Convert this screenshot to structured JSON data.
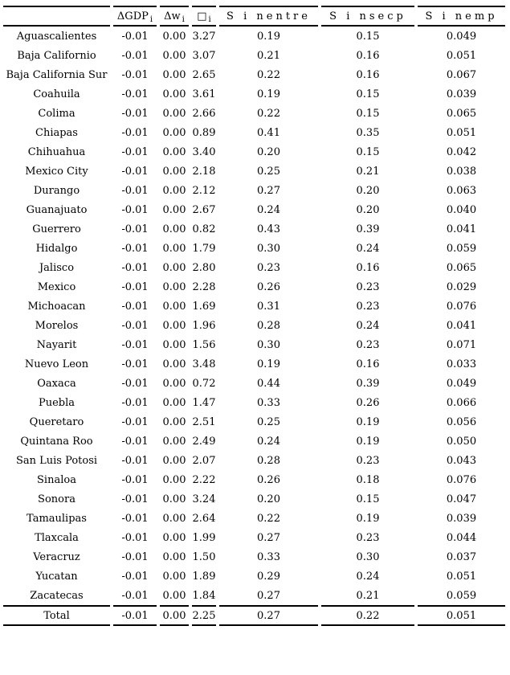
{
  "page": {
    "background_color": "#ffffff",
    "text_color": "#000000",
    "rule_color": "#000000"
  },
  "table": {
    "columns": [
      {
        "id": "state",
        "header": ""
      },
      {
        "id": "dgdp",
        "header_base": "ΔGDP",
        "header_sub": "i"
      },
      {
        "id": "dw",
        "header_base": "Δw",
        "header_sub": "i"
      },
      {
        "id": "box",
        "header_base": "□",
        "header_sub": "i"
      },
      {
        "id": "s-nentre",
        "header": "S i nentre"
      },
      {
        "id": "s-nsecp",
        "header": "S i nsecp"
      },
      {
        "id": "s-nemp",
        "header": "S i nemp"
      }
    ],
    "rows": [
      [
        "Aguascalientes",
        "-0.01",
        "0.00",
        "3.27",
        "0.19",
        "0.15",
        "0.049"
      ],
      [
        "Baja Californio",
        "-0.01",
        "0.00",
        "3.07",
        "0.21",
        "0.16",
        "0.051"
      ],
      [
        "Baja California Sur",
        "-0.01",
        "0.00",
        "2.65",
        "0.22",
        "0.16",
        "0.067"
      ],
      [
        "Coahuila",
        "-0.01",
        "0.00",
        "3.61",
        "0.19",
        "0.15",
        "0.039"
      ],
      [
        "Colima",
        "-0.01",
        "0.00",
        "2.66",
        "0.22",
        "0.15",
        "0.065"
      ],
      [
        "Chiapas",
        "-0.01",
        "0.00",
        "0.89",
        "0.41",
        "0.35",
        "0.051"
      ],
      [
        "Chihuahua",
        "-0.01",
        "0.00",
        "3.40",
        "0.20",
        "0.15",
        "0.042"
      ],
      [
        "Mexico City",
        "-0.01",
        "0.00",
        "2.18",
        "0.25",
        "0.21",
        "0.038"
      ],
      [
        "Durango",
        "-0.01",
        "0.00",
        "2.12",
        "0.27",
        "0.20",
        "0.063"
      ],
      [
        "Guanajuato",
        "-0.01",
        "0.00",
        "2.67",
        "0.24",
        "0.20",
        "0.040"
      ],
      [
        "Guerrero",
        "-0.01",
        "0.00",
        "0.82",
        "0.43",
        "0.39",
        "0.041"
      ],
      [
        "Hidalgo",
        "-0.01",
        "0.00",
        "1.79",
        "0.30",
        "0.24",
        "0.059"
      ],
      [
        "Jalisco",
        "-0.01",
        "0.00",
        "2.80",
        "0.23",
        "0.16",
        "0.065"
      ],
      [
        "Mexico",
        "-0.01",
        "0.00",
        "2.28",
        "0.26",
        "0.23",
        "0.029"
      ],
      [
        "Michoacan",
        "-0.01",
        "0.00",
        "1.69",
        "0.31",
        "0.23",
        "0.076"
      ],
      [
        "Morelos",
        "-0.01",
        "0.00",
        "1.96",
        "0.28",
        "0.24",
        "0.041"
      ],
      [
        "Nayarit",
        "-0.01",
        "0.00",
        "1.56",
        "0.30",
        "0.23",
        "0.071"
      ],
      [
        "Nuevo Leon",
        "-0.01",
        "0.00",
        "3.48",
        "0.19",
        "0.16",
        "0.033"
      ],
      [
        "Oaxaca",
        "-0.01",
        "0.00",
        "0.72",
        "0.44",
        "0.39",
        "0.049"
      ],
      [
        "Puebla",
        "-0.01",
        "0.00",
        "1.47",
        "0.33",
        "0.26",
        "0.066"
      ],
      [
        "Queretaro",
        "-0.01",
        "0.00",
        "2.51",
        "0.25",
        "0.19",
        "0.056"
      ],
      [
        "Quintana Roo",
        "-0.01",
        "0.00",
        "2.49",
        "0.24",
        "0.19",
        "0.050"
      ],
      [
        "San Luis Potosi",
        "-0.01",
        "0.00",
        "2.07",
        "0.28",
        "0.23",
        "0.043"
      ],
      [
        "Sinaloa",
        "-0.01",
        "0.00",
        "2.22",
        "0.26",
        "0.18",
        "0.076"
      ],
      [
        "Sonora",
        "-0.01",
        "0.00",
        "3.24",
        "0.20",
        "0.15",
        "0.047"
      ],
      [
        "Tamaulipas",
        "-0.01",
        "0.00",
        "2.64",
        "0.22",
        "0.19",
        "0.039"
      ],
      [
        "Tlaxcala",
        "-0.01",
        "0.00",
        "1.99",
        "0.27",
        "0.23",
        "0.044"
      ],
      [
        "Veracruz",
        "-0.01",
        "0.00",
        "1.50",
        "0.33",
        "0.30",
        "0.037"
      ],
      [
        "Yucatan",
        "-0.01",
        "0.00",
        "1.89",
        "0.29",
        "0.24",
        "0.051"
      ],
      [
        "Zacatecas",
        "-0.01",
        "0.00",
        "1.84",
        "0.27",
        "0.21",
        "0.059"
      ]
    ],
    "total": [
      "Total",
      "-0.01",
      "0.00",
      "2.25",
      "0.27",
      "0.22",
      "0.051"
    ]
  }
}
